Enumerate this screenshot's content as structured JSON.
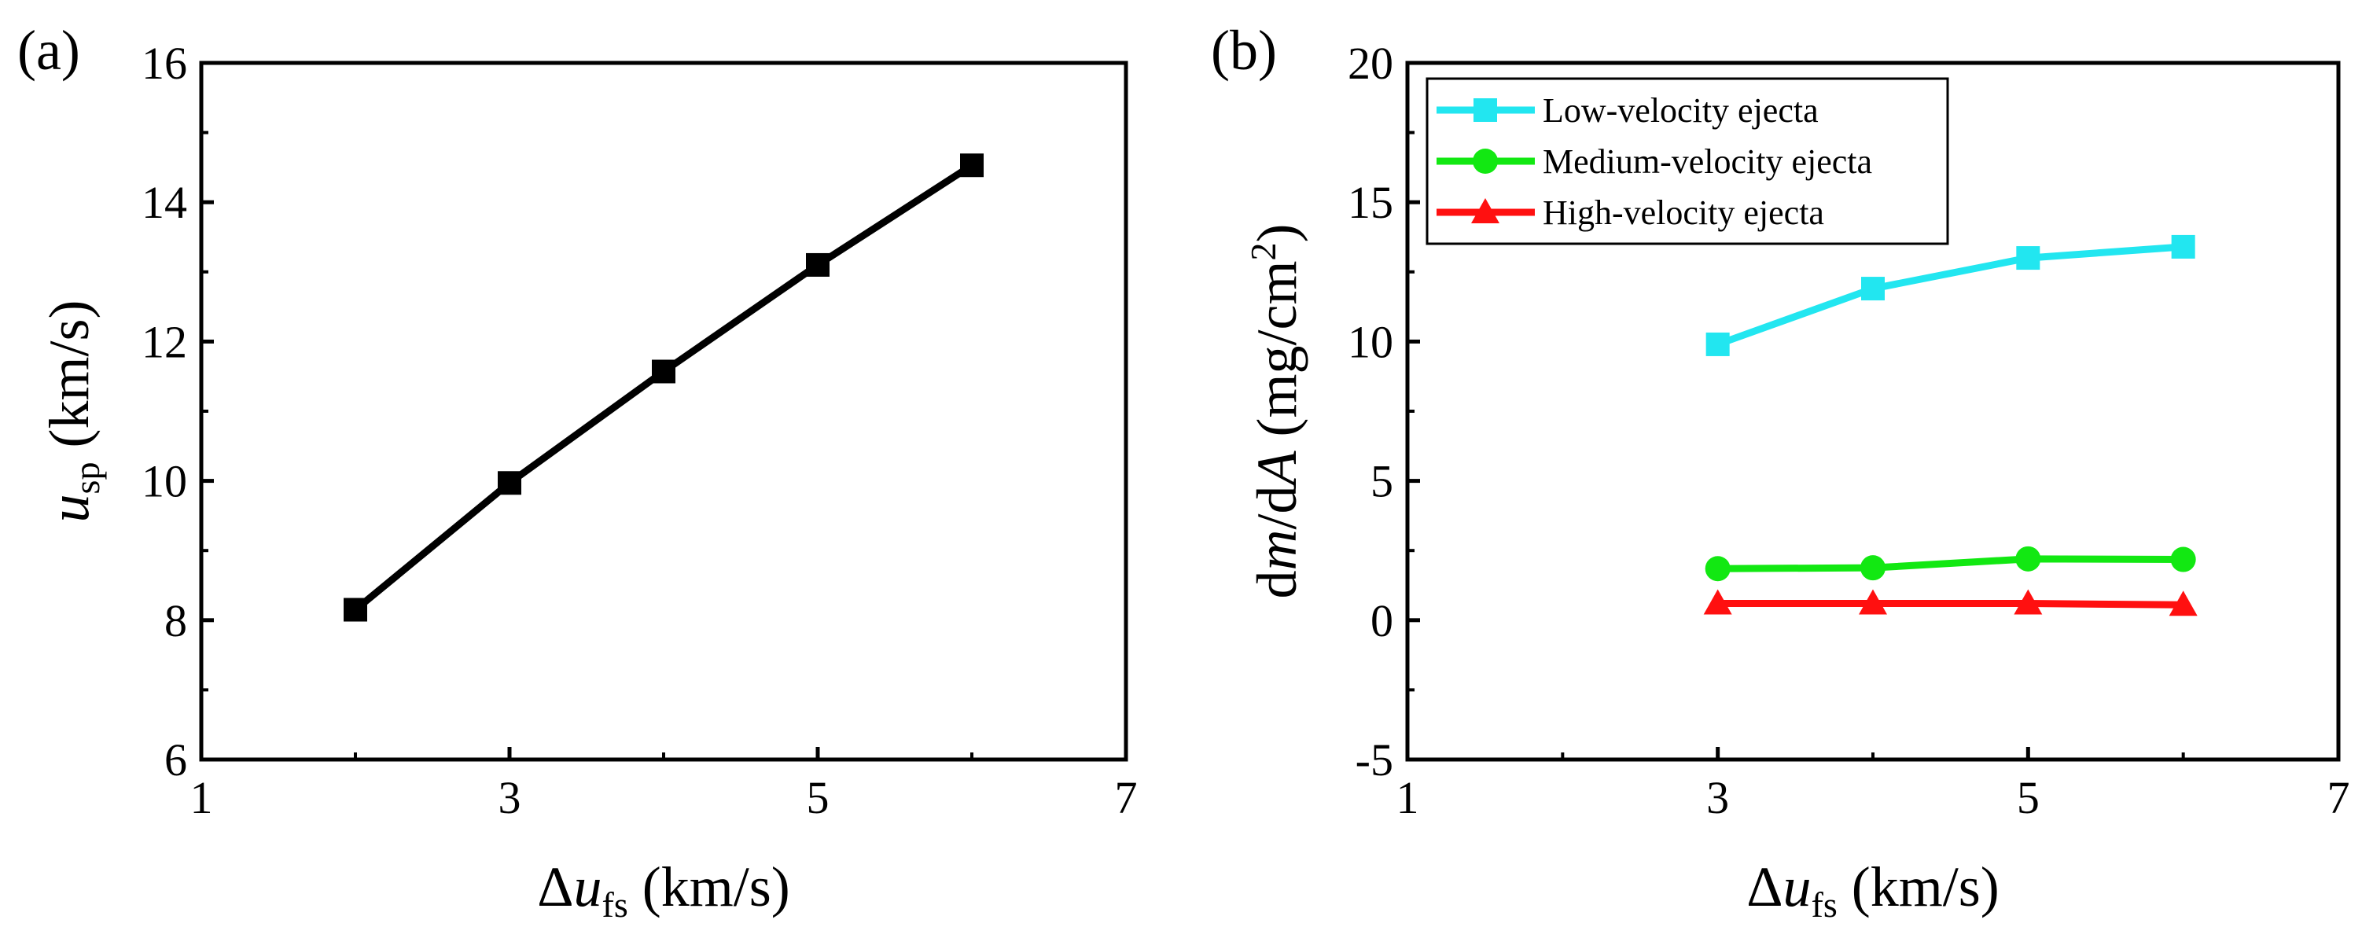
{
  "chart_data": [
    {
      "panel_label": "(a)",
      "type": "line",
      "x": [
        2,
        3,
        4,
        5,
        6
      ],
      "series": [
        {
          "name": "u_sp",
          "values": [
            8.15,
            9.97,
            11.57,
            13.1,
            14.53
          ],
          "color": "#000000",
          "marker": "square"
        }
      ],
      "xlabel": {
        "pre": "Δ",
        "var": "u",
        "sub": "fs",
        "unit": " (km/s)"
      },
      "ylabel": {
        "pre": "",
        "var": "u",
        "sub": "sp",
        "unit": " (km/s)"
      },
      "xlim": [
        1,
        7
      ],
      "ylim": [
        6,
        16
      ],
      "xticks": [
        1,
        3,
        5,
        7
      ],
      "yticks": [
        6,
        8,
        10,
        12,
        14,
        16
      ],
      "grid": false
    },
    {
      "panel_label": "(b)",
      "type": "line",
      "x": [
        3,
        4,
        5,
        6
      ],
      "series": [
        {
          "name": "Low-velocity ejecta",
          "values": [
            9.9,
            11.9,
            13.0,
            13.4
          ],
          "color": "#22e6f0",
          "marker": "square"
        },
        {
          "name": "Medium-velocity ejecta",
          "values": [
            1.85,
            1.88,
            2.2,
            2.18
          ],
          "color": "#12e812",
          "marker": "circle"
        },
        {
          "name": "High-velocity ejecta",
          "values": [
            0.6,
            0.6,
            0.6,
            0.55
          ],
          "color": "#ff1010",
          "marker": "triangle"
        }
      ],
      "xlabel": {
        "pre": "Δ",
        "var": "u",
        "sub": "fs",
        "unit": " (km/s)"
      },
      "ylabel": {
        "text": "dm/dA (mg/cm2)"
      },
      "xlim": [
        1,
        7
      ],
      "ylim": [
        -5,
        20
      ],
      "xticks": [
        1,
        3,
        5,
        7
      ],
      "yticks": [
        -5,
        0,
        5,
        10,
        15,
        20
      ],
      "legend_position": "top-left",
      "grid": false
    }
  ]
}
